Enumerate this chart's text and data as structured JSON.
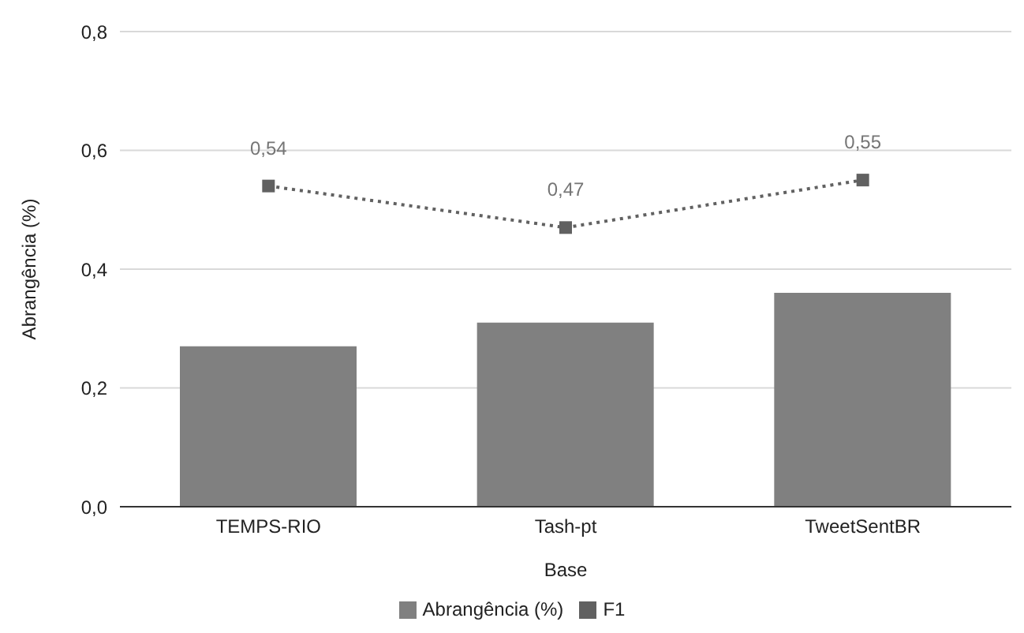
{
  "chart_data": {
    "type": "bar",
    "xlabel": "Base",
    "ylabel": "Abrangência (%)",
    "categories": [
      "TEMPS-RIO",
      "Tash-pt",
      "TweetSentBR"
    ],
    "series": [
      {
        "name": "Abrangência (%)",
        "color": "#808080",
        "values": [
          0.27,
          0.31,
          0.36
        ]
      },
      {
        "name": "F1",
        "type": "line",
        "color": "#616161",
        "values": [
          0.54,
          0.47,
          0.55
        ],
        "value_labels": [
          "0,54",
          "0,47",
          "0,55"
        ],
        "marker": "square",
        "line_style": "dotted"
      }
    ],
    "ylim": [
      0,
      0.8
    ],
    "yticks": [
      {
        "value": 0,
        "label": "0,0"
      },
      {
        "value": 0.2,
        "label": "0,2"
      },
      {
        "value": 0.4,
        "label": "0,4"
      },
      {
        "value": 0.6,
        "label": "0,6"
      },
      {
        "value": 0.8,
        "label": "0,8"
      }
    ],
    "grid": "y",
    "legend": "bottom"
  }
}
